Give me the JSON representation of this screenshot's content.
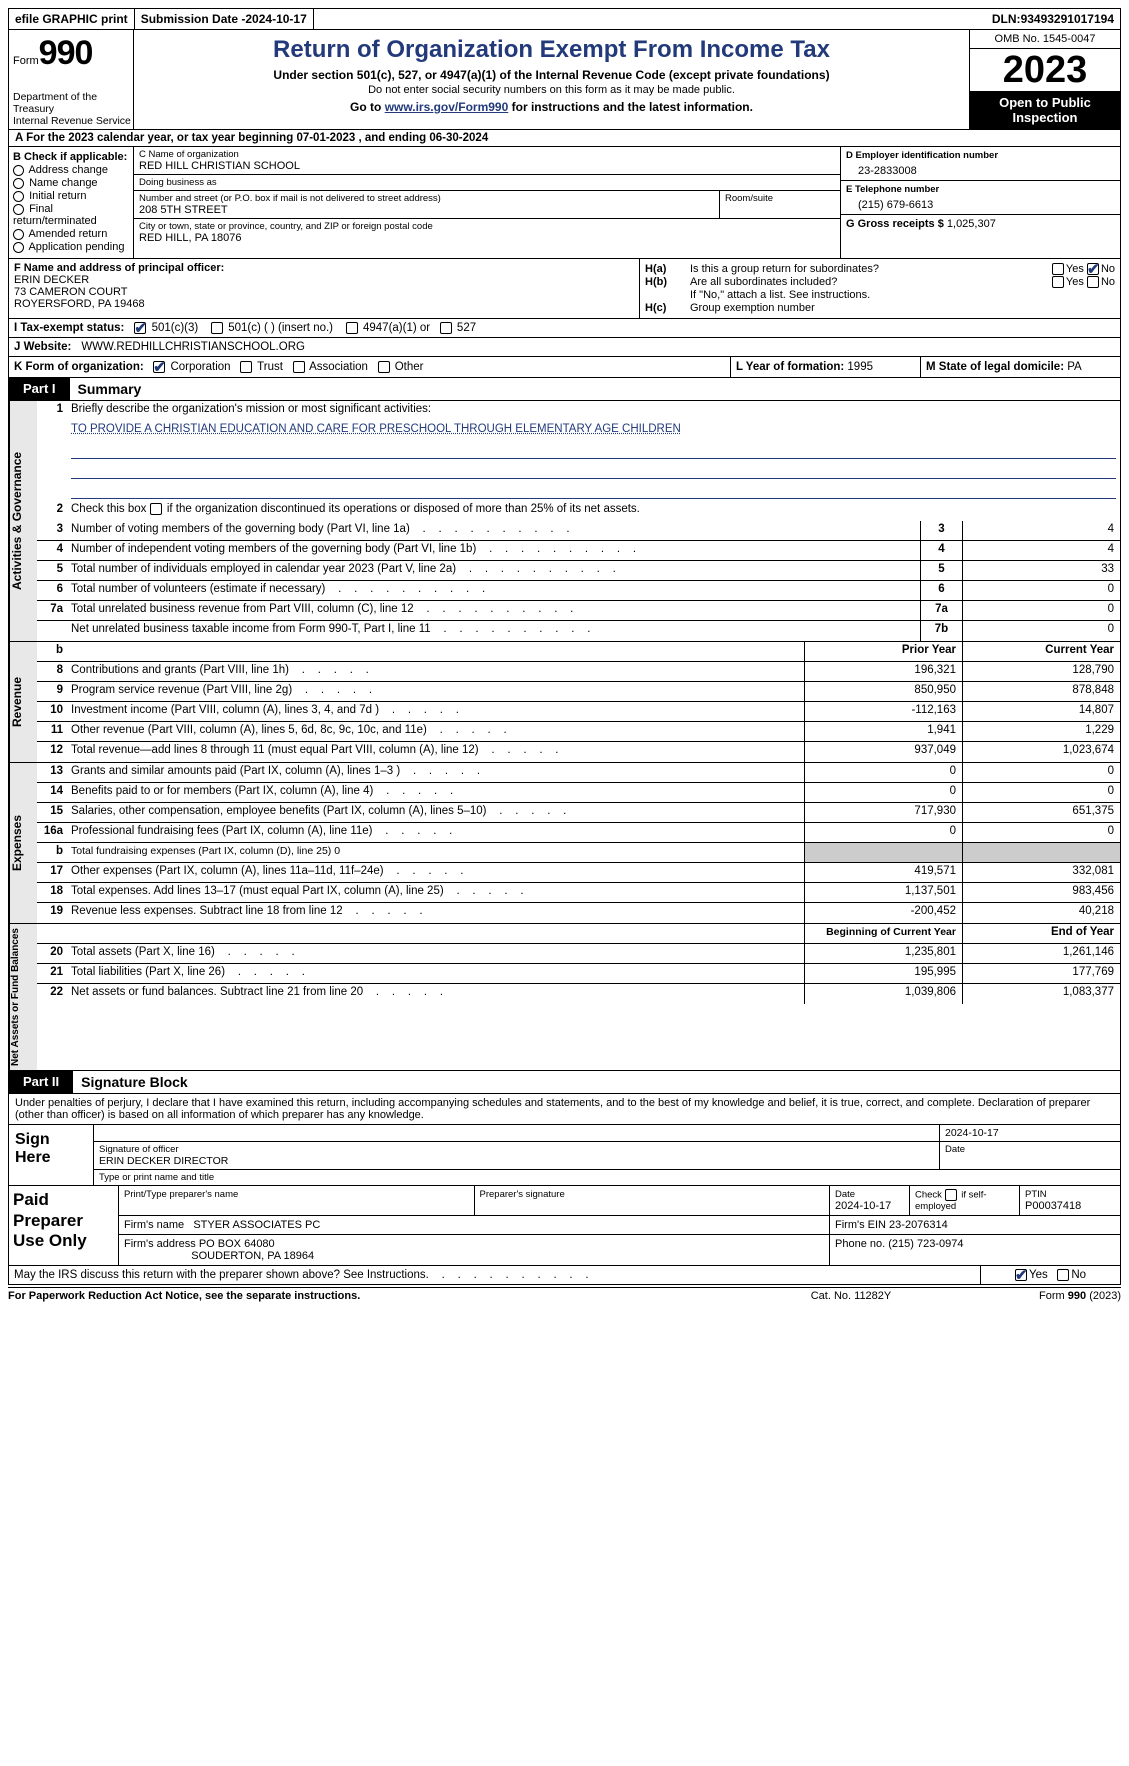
{
  "colors": {
    "accent": "#223a7a",
    "black": "#000000",
    "shade": "#cccccc",
    "tab_bg": "#e8e8e8"
  },
  "topbar": {
    "efile": "efile GRAPHIC print",
    "submission_label": "Submission Date - ",
    "submission_date": "2024-10-17",
    "dln_label": "DLN: ",
    "dln": "93493291017194"
  },
  "header": {
    "form_label": "Form",
    "form_number": "990",
    "dept": "Department of the Treasury\nInternal Revenue Service",
    "title": "Return of Organization Exempt From Income Tax",
    "subtitle": "Under section 501(c), 527, or 4947(a)(1) of the Internal Revenue Code (except private foundations)",
    "ssn_note": "Do not enter social security numbers on this form as it may be made public.",
    "goto_prefix": "Go to ",
    "goto_link": "www.irs.gov/Form990",
    "goto_suffix": " for instructions and the latest information.",
    "omb": "OMB No. 1545-0047",
    "year": "2023",
    "open": "Open to Public Inspection"
  },
  "row_a": {
    "prefix": "A For the 2023 calendar year, or tax year beginning ",
    "begin": "07-01-2023",
    "mid": "   , and ending ",
    "end": "06-30-2024"
  },
  "section_b": {
    "label": "B Check if applicable:",
    "items": [
      "Address change",
      "Name change",
      "Initial return",
      "Final return/terminated",
      "Amended return",
      "Application pending"
    ]
  },
  "section_c": {
    "name_label": "C Name of organization",
    "name": "RED HILL CHRISTIAN SCHOOL",
    "dba_label": "Doing business as",
    "dba": "",
    "street_label": "Number and street (or P.O. box if mail is not delivered to street address)",
    "street": "208 5TH STREET",
    "room_label": "Room/suite",
    "room": "",
    "city_label": "City or town, state or province, country, and ZIP or foreign postal code",
    "city": "RED HILL, PA   18076"
  },
  "section_d": {
    "label": "D Employer identification number",
    "value": "23-2833008"
  },
  "section_e": {
    "label": "E Telephone number",
    "value": "(215) 679-6613"
  },
  "section_g": {
    "label": "G Gross receipts $ ",
    "value": "1,025,307"
  },
  "section_f": {
    "label": "F  Name and address of principal officer:",
    "name": "ERIN DECKER",
    "addr1": "73 CAMERON COURT",
    "addr2": "ROYERSFORD, PA   19468"
  },
  "section_h": {
    "ha_label": "H(a)",
    "ha_text": "Is this a group return for subordinates?",
    "ha_yes": false,
    "ha_no": true,
    "hb_label": "H(b)",
    "hb_text": "Are all subordinates included?",
    "hb_yes": false,
    "hb_no": false,
    "hb_note": "If \"No,\" attach a list. See instructions.",
    "hc_label": "H(c)",
    "hc_text": "Group exemption number  ",
    "hc_value": ""
  },
  "row_i": {
    "label": "I   Tax-exempt status:",
    "c501c3": true,
    "c501c3_label": "501(c)(3)",
    "c501c": false,
    "c501c_label": "501(c) (   ) (insert no.)",
    "c4947": false,
    "c4947_label": "4947(a)(1) or",
    "c527": false,
    "c527_label": "527"
  },
  "row_j": {
    "label": "J   Website: ",
    "value": "WWW.REDHILLCHRISTIANSCHOOL.ORG"
  },
  "row_k": {
    "label": "K Form of organization:",
    "corp": true,
    "corp_label": "Corporation",
    "trust": false,
    "trust_label": "Trust",
    "assoc": false,
    "assoc_label": "Association",
    "other": false,
    "other_label": "Other",
    "l_label": "L Year of formation: ",
    "l_value": "1995",
    "m_label": "M State of legal domicile: ",
    "m_value": "PA"
  },
  "part1": {
    "tag": "Part I",
    "title": "Summary"
  },
  "summary": {
    "gov_tab": "Activities & Governance",
    "rev_tab": "Revenue",
    "exp_tab": "Expenses",
    "net_tab": "Net Assets or Fund Balances",
    "line1_label": "Briefly describe the organization's mission or most significant activities:",
    "mission": "TO PROVIDE A CHRISTIAN EDUCATION AND CARE FOR PRESCHOOL THROUGH ELEMENTARY AGE CHILDREN",
    "line2": "Check this box      if the organization discontinued its operations or disposed of more than 25% of its net assets.",
    "lines_gov": [
      {
        "n": "3",
        "d": "Number of voting members of the governing body (Part VI, line 1a)",
        "box": "3",
        "v": "4"
      },
      {
        "n": "4",
        "d": "Number of independent voting members of the governing body (Part VI, line 1b)",
        "box": "4",
        "v": "4"
      },
      {
        "n": "5",
        "d": "Total number of individuals employed in calendar year 2023 (Part V, line 2a)",
        "box": "5",
        "v": "33"
      },
      {
        "n": "6",
        "d": "Total number of volunteers (estimate if necessary)",
        "box": "6",
        "v": "0"
      },
      {
        "n": "7a",
        "d": "Total unrelated business revenue from Part VIII, column (C), line 12",
        "box": "7a",
        "v": "0"
      },
      {
        "n": "",
        "d": "Net unrelated business taxable income from Form 990-T, Part I, line 11",
        "box": "7b",
        "v": "0"
      }
    ],
    "col_hdr_b": "b",
    "col_prior": "Prior Year",
    "col_current": "Current Year",
    "lines_rev": [
      {
        "n": "8",
        "d": "Contributions and grants (Part VIII, line 1h)",
        "p": "196,321",
        "c": "128,790"
      },
      {
        "n": "9",
        "d": "Program service revenue (Part VIII, line 2g)",
        "p": "850,950",
        "c": "878,848"
      },
      {
        "n": "10",
        "d": "Investment income (Part VIII, column (A), lines 3, 4, and 7d )",
        "p": "-112,163",
        "c": "14,807"
      },
      {
        "n": "11",
        "d": "Other revenue (Part VIII, column (A), lines 5, 6d, 8c, 9c, 10c, and 11e)",
        "p": "1,941",
        "c": "1,229"
      },
      {
        "n": "12",
        "d": "Total revenue—add lines 8 through 11 (must equal Part VIII, column (A), line 12)",
        "p": "937,049",
        "c": "1,023,674"
      }
    ],
    "lines_exp": [
      {
        "n": "13",
        "d": "Grants and similar amounts paid (Part IX, column (A), lines 1–3 )",
        "p": "0",
        "c": "0"
      },
      {
        "n": "14",
        "d": "Benefits paid to or for members (Part IX, column (A), line 4)",
        "p": "0",
        "c": "0"
      },
      {
        "n": "15",
        "d": "Salaries, other compensation, employee benefits (Part IX, column (A), lines 5–10)",
        "p": "717,930",
        "c": "651,375"
      },
      {
        "n": "16a",
        "d": "Professional fundraising fees (Part IX, column (A), line 11e)",
        "p": "0",
        "c": "0"
      },
      {
        "n": "b",
        "d": "Total fundraising expenses (Part IX, column (D), line 25) 0",
        "p": "",
        "c": "",
        "shade": true,
        "small": true
      },
      {
        "n": "17",
        "d": "Other expenses (Part IX, column (A), lines 11a–11d, 11f–24e)",
        "p": "419,571",
        "c": "332,081"
      },
      {
        "n": "18",
        "d": "Total expenses. Add lines 13–17 (must equal Part IX, column (A), line 25)",
        "p": "1,137,501",
        "c": "983,456"
      },
      {
        "n": "19",
        "d": "Revenue less expenses. Subtract line 18 from line 12",
        "p": "-200,452",
        "c": "40,218"
      }
    ],
    "col_begin": "Beginning of Current Year",
    "col_end": "End of Year",
    "lines_net": [
      {
        "n": "20",
        "d": "Total assets (Part X, line 16)",
        "p": "1,235,801",
        "c": "1,261,146"
      },
      {
        "n": "21",
        "d": "Total liabilities (Part X, line 26)",
        "p": "195,995",
        "c": "177,769"
      },
      {
        "n": "22",
        "d": "Net assets or fund balances. Subtract line 21 from line 20",
        "p": "1,039,806",
        "c": "1,083,377"
      }
    ]
  },
  "part2": {
    "tag": "Part II",
    "title": "Signature Block"
  },
  "sig": {
    "declaration": "Under penalties of perjury, I declare that I have examined this return, including accompanying schedules and statements, and to the best of my knowledge and belief, it is true, correct, and complete. Declaration of preparer (other than officer) is based on all information of which preparer has any knowledge.",
    "sign_here": "Sign Here",
    "sig_officer_label": "Signature of officer",
    "officer_name": "ERIN DECKER DIRECTOR",
    "date_top": "2024-10-17",
    "date_label": "Date",
    "type_label": "Type or print name and title"
  },
  "preparer": {
    "title": "Paid Preparer Use Only",
    "print_label": "Print/Type preparer's name",
    "print_name": "",
    "sig_label": "Preparer's signature",
    "date_label": "Date",
    "date": "2024-10-17",
    "check_label": "Check         if self-employed",
    "checked": false,
    "ptin_label": "PTIN",
    "ptin": "P00037418",
    "firm_name_label": "Firm's name    ",
    "firm_name": "STYER ASSOCIATES PC",
    "firm_ein_label": "Firm's EIN  ",
    "firm_ein": "23-2076314",
    "firm_addr_label": "Firm's address ",
    "firm_addr1": "PO BOX 64080",
    "firm_addr2": "SOUDERTON, PA   18964",
    "phone_label": "Phone no. ",
    "phone": "(215) 723-0974"
  },
  "discuss": {
    "text": "May the IRS discuss this return with the preparer shown above? See Instructions.",
    "yes": true,
    "no": false,
    "yes_label": "Yes",
    "no_label": "No"
  },
  "footer": {
    "left": "For Paperwork Reduction Act Notice, see the separate instructions.",
    "cat": "Cat. No. 11282Y",
    "form": "Form 990 (2023)"
  }
}
